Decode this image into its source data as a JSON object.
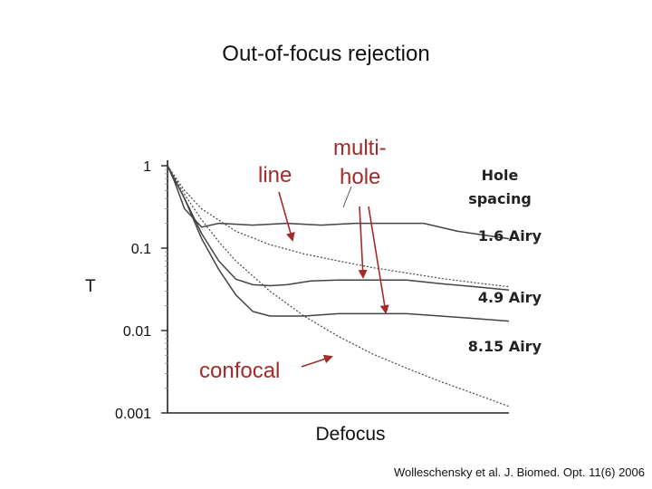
{
  "slide": {
    "title": "Out-of-focus rejection",
    "citation": "Wolleschensky et al. J. Biomed. Opt. 11(6) 2006"
  },
  "chart_data": {
    "type": "line",
    "title": "",
    "xlabel": "Defocus",
    "ylabel": "T",
    "yscale": "log",
    "ylim": [
      0.001,
      1
    ],
    "xlim": [
      0,
      1
    ],
    "grid": false,
    "y_ticks": [
      {
        "value": 1,
        "label": "1"
      },
      {
        "value": 0.1,
        "label": "0.1"
      },
      {
        "value": 0.01,
        "label": "0.01"
      },
      {
        "value": 0.001,
        "label": "0.001"
      }
    ],
    "legend_header": [
      "Hole",
      "spacing"
    ],
    "series": [
      {
        "name": "1.6 Airy",
        "style": "solid",
        "points": [
          [
            0,
            1
          ],
          [
            0.02,
            0.65
          ],
          [
            0.05,
            0.3
          ],
          [
            0.1,
            0.18
          ],
          [
            0.15,
            0.2
          ],
          [
            0.25,
            0.19
          ],
          [
            0.35,
            0.2
          ],
          [
            0.45,
            0.19
          ],
          [
            0.55,
            0.2
          ],
          [
            0.65,
            0.2
          ],
          [
            0.75,
            0.2
          ],
          [
            0.85,
            0.16
          ],
          [
            1.0,
            0.13
          ]
        ]
      },
      {
        "name": "4.9 Airy",
        "style": "solid",
        "points": [
          [
            0,
            1
          ],
          [
            0.05,
            0.4
          ],
          [
            0.1,
            0.15
          ],
          [
            0.15,
            0.07
          ],
          [
            0.2,
            0.042
          ],
          [
            0.25,
            0.036
          ],
          [
            0.3,
            0.035
          ],
          [
            0.35,
            0.036
          ],
          [
            0.42,
            0.04
          ],
          [
            0.5,
            0.041
          ],
          [
            0.6,
            0.041
          ],
          [
            0.7,
            0.041
          ],
          [
            0.8,
            0.037
          ],
          [
            0.9,
            0.034
          ],
          [
            1.0,
            0.031
          ]
        ]
      },
      {
        "name": "8.15 Airy",
        "style": "solid",
        "points": [
          [
            0,
            1
          ],
          [
            0.05,
            0.4
          ],
          [
            0.1,
            0.13
          ],
          [
            0.15,
            0.055
          ],
          [
            0.2,
            0.027
          ],
          [
            0.25,
            0.017
          ],
          [
            0.3,
            0.015
          ],
          [
            0.4,
            0.015
          ],
          [
            0.5,
            0.016
          ],
          [
            0.6,
            0.016
          ],
          [
            0.7,
            0.016
          ],
          [
            0.8,
            0.015
          ],
          [
            0.9,
            0.014
          ],
          [
            1.0,
            0.013
          ]
        ]
      },
      {
        "name": "line",
        "style": "dotted",
        "points": [
          [
            0,
            1
          ],
          [
            0.05,
            0.5
          ],
          [
            0.1,
            0.3
          ],
          [
            0.2,
            0.16
          ],
          [
            0.3,
            0.11
          ],
          [
            0.4,
            0.085
          ],
          [
            0.5,
            0.07
          ],
          [
            0.6,
            0.058
          ],
          [
            0.7,
            0.05
          ],
          [
            0.8,
            0.043
          ],
          [
            0.9,
            0.038
          ],
          [
            1.0,
            0.034
          ]
        ]
      },
      {
        "name": "confocal",
        "style": "dotted",
        "points": [
          [
            0,
            1
          ],
          [
            0.05,
            0.45
          ],
          [
            0.1,
            0.22
          ],
          [
            0.15,
            0.12
          ],
          [
            0.2,
            0.07
          ],
          [
            0.3,
            0.03
          ],
          [
            0.4,
            0.015
          ],
          [
            0.5,
            0.0085
          ],
          [
            0.6,
            0.0052
          ],
          [
            0.7,
            0.0035
          ],
          [
            0.8,
            0.0024
          ],
          [
            0.9,
            0.0017
          ],
          [
            1.0,
            0.0012
          ]
        ]
      }
    ],
    "annotations": {
      "line": "line",
      "multihole_1": "multi-",
      "multihole_2": "hole",
      "confocal": "confocal"
    },
    "series_labels": [
      "1.6 Airy",
      "4.9 Airy",
      "8.15 Airy"
    ],
    "colors": {
      "annotation": "#a52a2a",
      "curve": "#444444",
      "axis": "#222222",
      "text": "#111111"
    }
  }
}
